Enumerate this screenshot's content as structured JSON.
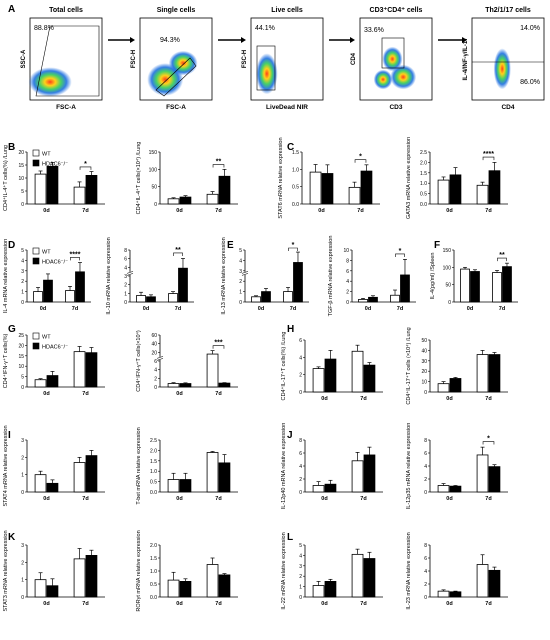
{
  "colors": {
    "wt": "#ffffff",
    "ko": "#000000",
    "axis": "#000000"
  },
  "flow": {
    "panel_label": "A",
    "panels": [
      {
        "title": "Total cells",
        "xlabel": "FSC-A",
        "ylabel": "SSC-A",
        "gates": [
          "88.8%"
        ]
      },
      {
        "title": "Single cells",
        "xlabel": "FSC-A",
        "ylabel": "FSC-H",
        "gates": [
          "94.3%"
        ]
      },
      {
        "title": "Live cells",
        "xlabel": "LiveDead NIR",
        "ylabel": "FSC-H",
        "gates": [
          "44.1%"
        ]
      },
      {
        "title": "CD3⁺CD4⁺ cells",
        "xlabel": "CD3",
        "ylabel": "CD4",
        "gates": [
          "33.6%"
        ]
      },
      {
        "title": "Th2/1/17 cells",
        "xlabel": "CD4",
        "ylabel": "IL-4/INF-γ/IL-17",
        "gates": [
          "14.0%",
          "86.0%"
        ]
      }
    ]
  },
  "chart_data": [
    {
      "type": "bar",
      "label": "B",
      "ylabel": "CD4⁺IL-4⁺T cells(%) /Lung",
      "categories": [
        "0d",
        "7d"
      ],
      "ylim": [
        0,
        20
      ],
      "yticks": [
        "0",
        "5",
        "10",
        "15",
        "20"
      ],
      "legend": [
        "WT",
        "HDAC6⁻/⁻"
      ],
      "series": [
        {
          "name": "WT",
          "values": [
            11.5,
            6.5
          ],
          "err": [
            1.2,
            2
          ]
        },
        {
          "name": "HDAC6⁻/⁻",
          "values": [
            14.5,
            11
          ],
          "err": [
            1.5,
            1.5
          ]
        }
      ],
      "sig": [
        {
          "cat": 1,
          "text": "*"
        }
      ]
    },
    {
      "type": "bar",
      "ylabel": "CD4⁺IL-4⁺T cells(×10⁴) /Lung",
      "categories": [
        "0d",
        "7d"
      ],
      "ylim": [
        0,
        150
      ],
      "yticks": [
        "0",
        "50",
        "100",
        "150"
      ],
      "series": [
        {
          "name": "WT",
          "values": [
            15,
            28
          ],
          "err": [
            3,
            8
          ]
        },
        {
          "name": "HDAC6⁻/⁻",
          "values": [
            20,
            80
          ],
          "err": [
            4,
            20
          ]
        }
      ],
      "sig": [
        {
          "cat": 1,
          "text": "**"
        }
      ]
    },
    {
      "type": "bar",
      "label": "C",
      "ylabel": "STAT6 mRNA relative expression",
      "categories": [
        "0d",
        "7d"
      ],
      "ylim": [
        0,
        1.5
      ],
      "yticks": [
        "0.0",
        "0.5",
        "1.0",
        "1.5"
      ],
      "series": [
        {
          "name": "WT",
          "values": [
            0.92,
            0.48
          ],
          "err": [
            0.22,
            0.15
          ]
        },
        {
          "name": "HDAC6⁻/⁻",
          "values": [
            0.88,
            0.95
          ],
          "err": [
            0.25,
            0.18
          ]
        }
      ],
      "sig": [
        {
          "cat": 1,
          "text": "*"
        }
      ]
    },
    {
      "type": "bar",
      "ylabel": "GATA3 mRNA relative expression",
      "categories": [
        "0d",
        "7d"
      ],
      "ylim": [
        0,
        2.5
      ],
      "yticks": [
        "0.0",
        "0.5",
        "1.0",
        "1.5",
        "2.0",
        "2.5"
      ],
      "series": [
        {
          "name": "WT",
          "values": [
            1.15,
            0.9
          ],
          "err": [
            0.15,
            0.15
          ]
        },
        {
          "name": "HDAC6⁻/⁻",
          "values": [
            1.4,
            1.6
          ],
          "err": [
            0.35,
            0.4
          ]
        }
      ],
      "sig": [
        {
          "cat": 1,
          "text": "****"
        }
      ]
    },
    {
      "type": "bar",
      "label": "D",
      "ylabel": "IL-4 mRNA relative expression",
      "categories": [
        "0d",
        "7d"
      ],
      "ylim": [
        0,
        5
      ],
      "yticks": [
        "0",
        "1",
        "2",
        "3",
        "4",
        "5"
      ],
      "legend": [
        "WT",
        "HDAC6⁻/⁻"
      ],
      "series": [
        {
          "name": "WT",
          "values": [
            1,
            1.1
          ],
          "err": [
            0.4,
            0.4
          ]
        },
        {
          "name": "HDAC6⁻/⁻",
          "values": [
            2.1,
            2.9
          ],
          "err": [
            0.6,
            0.9
          ]
        }
      ],
      "sig": [
        {
          "cat": 1,
          "text": "****"
        }
      ]
    },
    {
      "type": "bar",
      "ylabel": "IL-10 mRNA relative expression",
      "categories": [
        "0d",
        "7d"
      ],
      "ylim": [
        0,
        8
      ],
      "yticks": [
        "0",
        "1",
        "2",
        "3",
        "4",
        "6",
        "8"
      ],
      "break": true,
      "series": [
        {
          "name": "WT",
          "values": [
            1,
            1.3
          ],
          "err": [
            0.5,
            0.3
          ]
        },
        {
          "name": "HDAC6⁻/⁻",
          "values": [
            0.8,
            5.2
          ],
          "err": [
            0.3,
            1.5
          ]
        }
      ],
      "sig": [
        {
          "cat": 1,
          "text": "**"
        }
      ]
    },
    {
      "type": "bar",
      "label": "E",
      "ylabel": "IL-13 mRNA relative expression",
      "categories": [
        "0d",
        "7d"
      ],
      "ylim": [
        0,
        5
      ],
      "yticks": [
        "0",
        "1",
        "2",
        "3",
        "4",
        "5"
      ],
      "break": true,
      "series": [
        {
          "name": "WT",
          "values": [
            0.5,
            1
          ],
          "err": [
            0.1,
            0.4
          ]
        },
        {
          "name": "HDAC6⁻/⁻",
          "values": [
            1,
            3.8
          ],
          "err": [
            0.3,
            1
          ]
        }
      ],
      "sig": [
        {
          "cat": 1,
          "text": "*"
        }
      ]
    },
    {
      "type": "bar",
      "ylabel": "TGF-β mRNA relative expression",
      "categories": [
        "0d",
        "7d"
      ],
      "ylim": [
        0,
        10
      ],
      "yticks": [
        "0",
        "2",
        "4",
        "6",
        "8",
        "10"
      ],
      "series": [
        {
          "name": "WT",
          "values": [
            0.5,
            1.3
          ],
          "err": [
            0.2,
            1
          ]
        },
        {
          "name": "HDAC6⁻/⁻",
          "values": [
            0.9,
            5.2
          ],
          "err": [
            0.3,
            3
          ]
        }
      ],
      "sig": [
        {
          "cat": 1,
          "text": "*"
        }
      ]
    },
    {
      "type": "bar",
      "label": "F",
      "ylabel": "IL-4(pg/ml) /Spleen",
      "categories": [
        "0d",
        "7d"
      ],
      "ylim": [
        0,
        150
      ],
      "yticks": [
        "0",
        "50",
        "100",
        "150"
      ],
      "series": [
        {
          "name": "WT",
          "values": [
            95,
            85
          ],
          "err": [
            5,
            6
          ]
        },
        {
          "name": "HDAC6⁻/⁻",
          "values": [
            88,
            102
          ],
          "err": [
            5,
            10
          ]
        }
      ],
      "sig": [
        {
          "cat": 1,
          "text": "**"
        }
      ]
    },
    {
      "type": "bar",
      "label": "G",
      "ylabel": "CD4⁺IFN-γ⁺T cells(%)",
      "categories": [
        "0d",
        "7d"
      ],
      "ylim": [
        0,
        25
      ],
      "yticks": [
        "0",
        "5",
        "10",
        "15",
        "20",
        "25"
      ],
      "legend": [
        "WT",
        "HDAC6⁻/⁻"
      ],
      "series": [
        {
          "name": "WT",
          "values": [
            3.5,
            17
          ],
          "err": [
            0.5,
            2.5
          ]
        },
        {
          "name": "HDAC6⁻/⁻",
          "values": [
            5.5,
            16.5
          ],
          "err": [
            2,
            2.5
          ]
        }
      ],
      "sig": []
    },
    {
      "type": "bar",
      "ylabel": "CD4⁺IFN-γ⁺T cells(×10⁴)",
      "categories": [
        "0d",
        "7d"
      ],
      "ylim": [
        0,
        60
      ],
      "yticks": [
        "0",
        "2",
        "4",
        "6",
        "20",
        "40",
        "60"
      ],
      "break": true,
      "series": [
        {
          "name": "WT",
          "values": [
            4,
            38
          ],
          "err": [
            1,
            4
          ]
        },
        {
          "name": "HDAC6⁻/⁻",
          "values": [
            4,
            4.5
          ],
          "err": [
            0.8,
            0.5
          ]
        }
      ],
      "sig": [
        {
          "cat": 1,
          "text": "***"
        }
      ]
    },
    {
      "type": "bar",
      "label": "H",
      "ylabel": "CD4⁺IL-17⁺T cells(%) /Lung",
      "categories": [
        "0d",
        "7d"
      ],
      "ylim": [
        0,
        6
      ],
      "yticks": [
        "0",
        "2",
        "4",
        "6"
      ],
      "series": [
        {
          "name": "WT",
          "values": [
            2.7,
            4.7
          ],
          "err": [
            0.2,
            0.7
          ]
        },
        {
          "name": "HDAC6⁻/⁻",
          "values": [
            3.8,
            3.1
          ],
          "err": [
            1,
            0.3
          ]
        }
      ],
      "sig": []
    },
    {
      "type": "bar",
      "ylabel": "CD4⁺IL-17⁺T cells (×10⁴) /Lung",
      "categories": [
        "0d",
        "7d"
      ],
      "ylim": [
        0,
        50
      ],
      "yticks": [
        "0",
        "10",
        "20",
        "30",
        "40",
        "50"
      ],
      "series": [
        {
          "name": "WT",
          "values": [
            8,
            36
          ],
          "err": [
            2,
            4
          ]
        },
        {
          "name": "HDAC6⁻/⁻",
          "values": [
            13,
            36
          ],
          "err": [
            1,
            2
          ]
        }
      ],
      "sig": []
    },
    {
      "type": "bar",
      "label": "I",
      "ylabel": "STAT4 mRNA relative expression",
      "categories": [
        "0d",
        "7d"
      ],
      "ylim": [
        0,
        3
      ],
      "yticks": [
        "0",
        "1",
        "2",
        "3"
      ],
      "series": [
        {
          "name": "WT",
          "values": [
            1,
            1.7
          ],
          "err": [
            0.2,
            0.3
          ]
        },
        {
          "name": "HDAC6⁻/⁻",
          "values": [
            0.5,
            2.1
          ],
          "err": [
            0.2,
            0.3
          ]
        }
      ],
      "sig": []
    },
    {
      "type": "bar",
      "ylabel": "T-bet mRNA relative expression",
      "categories": [
        "0d",
        "7d"
      ],
      "ylim": [
        0,
        2.5
      ],
      "yticks": [
        "0.0",
        "0.5",
        "1.0",
        "1.5",
        "2.0",
        "2.5"
      ],
      "series": [
        {
          "name": "WT",
          "values": [
            0.6,
            1.9
          ],
          "err": [
            0.3,
            0.05
          ]
        },
        {
          "name": "HDAC6⁻/⁻",
          "values": [
            0.6,
            1.4
          ],
          "err": [
            0.3,
            0.4
          ]
        }
      ],
      "sig": []
    },
    {
      "type": "bar",
      "label": "J",
      "ylabel": "IL-12p40 mRNA relative expression",
      "categories": [
        "0d",
        "7d"
      ],
      "ylim": [
        0,
        8
      ],
      "yticks": [
        "0",
        "2",
        "4",
        "6",
        "8"
      ],
      "series": [
        {
          "name": "WT",
          "values": [
            1,
            4.8
          ],
          "err": [
            0.6,
            1.3
          ]
        },
        {
          "name": "HDAC6⁻/⁻",
          "values": [
            1.2,
            5.7
          ],
          "err": [
            0.6,
            1.2
          ]
        }
      ],
      "sig": []
    },
    {
      "type": "bar",
      "ylabel": "IL-12p35 mRNA relative expression",
      "categories": [
        "0d",
        "7d"
      ],
      "ylim": [
        0,
        8
      ],
      "yticks": [
        "0",
        "2",
        "4",
        "6",
        "8"
      ],
      "series": [
        {
          "name": "WT",
          "values": [
            1,
            5.7
          ],
          "err": [
            0.3,
            1.2
          ]
        },
        {
          "name": "HDAC6⁻/⁻",
          "values": [
            0.9,
            3.9
          ],
          "err": [
            0.1,
            0.3
          ]
        }
      ],
      "sig": [
        {
          "cat": 1,
          "text": "*"
        }
      ]
    },
    {
      "type": "bar",
      "label": "K",
      "ylabel": "STAT3 mRNA relative expression",
      "categories": [
        "0d",
        "7d"
      ],
      "ylim": [
        0,
        3
      ],
      "yticks": [
        "0",
        "1",
        "2",
        "3"
      ],
      "series": [
        {
          "name": "WT",
          "values": [
            1,
            2.2
          ],
          "err": [
            0.4,
            0.6
          ]
        },
        {
          "name": "HDAC6⁻/⁻",
          "values": [
            0.65,
            2.4
          ],
          "err": [
            0.4,
            0.3
          ]
        }
      ],
      "sig": []
    },
    {
      "type": "bar",
      "ylabel": "RORγt mRNA relative expression",
      "categories": [
        "0d",
        "7d"
      ],
      "ylim": [
        0,
        2
      ],
      "yticks": [
        "0.0",
        "0.5",
        "1.0",
        "1.5",
        "2.0"
      ],
      "series": [
        {
          "name": "WT",
          "values": [
            0.65,
            1.25
          ],
          "err": [
            0.3,
            0.25
          ]
        },
        {
          "name": "HDAC6⁻/⁻",
          "values": [
            0.6,
            0.85
          ],
          "err": [
            0.1,
            0.05
          ]
        }
      ],
      "sig": []
    },
    {
      "type": "bar",
      "label": "L",
      "ylabel": "IL-22 mRNA relative expression",
      "categories": [
        "0d",
        "7d"
      ],
      "ylim": [
        0,
        5
      ],
      "yticks": [
        "0",
        "1",
        "2",
        "3",
        "4",
        "5"
      ],
      "series": [
        {
          "name": "WT",
          "values": [
            1.1,
            4.1
          ],
          "err": [
            0.4,
            0.5
          ]
        },
        {
          "name": "HDAC6⁻/⁻",
          "values": [
            1.5,
            3.7
          ],
          "err": [
            0.2,
            0.6
          ]
        }
      ],
      "sig": []
    },
    {
      "type": "bar",
      "ylabel": "IL-23 mRNA relative expression",
      "categories": [
        "0d",
        "7d"
      ],
      "ylim": [
        0,
        8
      ],
      "yticks": [
        "0",
        "2",
        "4",
        "6",
        "8"
      ],
      "series": [
        {
          "name": "WT",
          "values": [
            0.9,
            5
          ],
          "err": [
            0.2,
            1.5
          ]
        },
        {
          "name": "HDAC6⁻/⁻",
          "values": [
            0.8,
            4.1
          ],
          "err": [
            0.1,
            0.5
          ]
        }
      ],
      "sig": []
    }
  ]
}
